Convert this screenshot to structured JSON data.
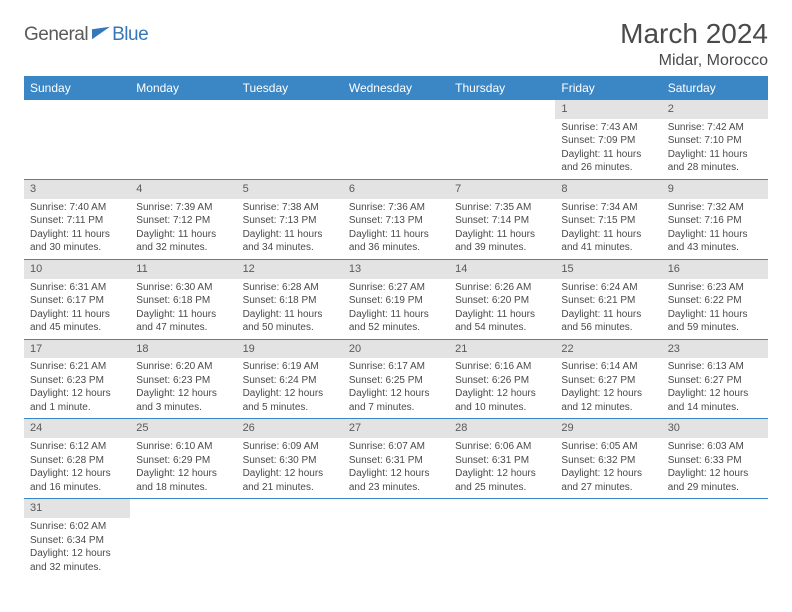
{
  "logo": {
    "part1": "General",
    "part2": "Blue"
  },
  "title": "March 2024",
  "subtitle": "Midar, Morocco",
  "colors": {
    "header_bg": "#3b86c4",
    "header_text": "#ffffff",
    "daynum_bg": "#e3e3e3",
    "border": "#3b86c4",
    "text": "#4a4a4a",
    "logo_blue": "#3577b8",
    "logo_gray": "#5a5a5a",
    "page_bg": "#ffffff"
  },
  "weekdays": [
    "Sunday",
    "Monday",
    "Tuesday",
    "Wednesday",
    "Thursday",
    "Friday",
    "Saturday"
  ],
  "grid": [
    [
      {
        "num": "",
        "lines": []
      },
      {
        "num": "",
        "lines": []
      },
      {
        "num": "",
        "lines": []
      },
      {
        "num": "",
        "lines": []
      },
      {
        "num": "",
        "lines": []
      },
      {
        "num": "1",
        "lines": [
          "Sunrise: 7:43 AM",
          "Sunset: 7:09 PM",
          "Daylight: 11 hours",
          "and 26 minutes."
        ]
      },
      {
        "num": "2",
        "lines": [
          "Sunrise: 7:42 AM",
          "Sunset: 7:10 PM",
          "Daylight: 11 hours",
          "and 28 minutes."
        ]
      }
    ],
    [
      {
        "num": "3",
        "lines": [
          "Sunrise: 7:40 AM",
          "Sunset: 7:11 PM",
          "Daylight: 11 hours",
          "and 30 minutes."
        ]
      },
      {
        "num": "4",
        "lines": [
          "Sunrise: 7:39 AM",
          "Sunset: 7:12 PM",
          "Daylight: 11 hours",
          "and 32 minutes."
        ]
      },
      {
        "num": "5",
        "lines": [
          "Sunrise: 7:38 AM",
          "Sunset: 7:13 PM",
          "Daylight: 11 hours",
          "and 34 minutes."
        ]
      },
      {
        "num": "6",
        "lines": [
          "Sunrise: 7:36 AM",
          "Sunset: 7:13 PM",
          "Daylight: 11 hours",
          "and 36 minutes."
        ]
      },
      {
        "num": "7",
        "lines": [
          "Sunrise: 7:35 AM",
          "Sunset: 7:14 PM",
          "Daylight: 11 hours",
          "and 39 minutes."
        ]
      },
      {
        "num": "8",
        "lines": [
          "Sunrise: 7:34 AM",
          "Sunset: 7:15 PM",
          "Daylight: 11 hours",
          "and 41 minutes."
        ]
      },
      {
        "num": "9",
        "lines": [
          "Sunrise: 7:32 AM",
          "Sunset: 7:16 PM",
          "Daylight: 11 hours",
          "and 43 minutes."
        ]
      }
    ],
    [
      {
        "num": "10",
        "lines": [
          "Sunrise: 6:31 AM",
          "Sunset: 6:17 PM",
          "Daylight: 11 hours",
          "and 45 minutes."
        ]
      },
      {
        "num": "11",
        "lines": [
          "Sunrise: 6:30 AM",
          "Sunset: 6:18 PM",
          "Daylight: 11 hours",
          "and 47 minutes."
        ]
      },
      {
        "num": "12",
        "lines": [
          "Sunrise: 6:28 AM",
          "Sunset: 6:18 PM",
          "Daylight: 11 hours",
          "and 50 minutes."
        ]
      },
      {
        "num": "13",
        "lines": [
          "Sunrise: 6:27 AM",
          "Sunset: 6:19 PM",
          "Daylight: 11 hours",
          "and 52 minutes."
        ]
      },
      {
        "num": "14",
        "lines": [
          "Sunrise: 6:26 AM",
          "Sunset: 6:20 PM",
          "Daylight: 11 hours",
          "and 54 minutes."
        ]
      },
      {
        "num": "15",
        "lines": [
          "Sunrise: 6:24 AM",
          "Sunset: 6:21 PM",
          "Daylight: 11 hours",
          "and 56 minutes."
        ]
      },
      {
        "num": "16",
        "lines": [
          "Sunrise: 6:23 AM",
          "Sunset: 6:22 PM",
          "Daylight: 11 hours",
          "and 59 minutes."
        ]
      }
    ],
    [
      {
        "num": "17",
        "lines": [
          "Sunrise: 6:21 AM",
          "Sunset: 6:23 PM",
          "Daylight: 12 hours",
          "and 1 minute."
        ]
      },
      {
        "num": "18",
        "lines": [
          "Sunrise: 6:20 AM",
          "Sunset: 6:23 PM",
          "Daylight: 12 hours",
          "and 3 minutes."
        ]
      },
      {
        "num": "19",
        "lines": [
          "Sunrise: 6:19 AM",
          "Sunset: 6:24 PM",
          "Daylight: 12 hours",
          "and 5 minutes."
        ]
      },
      {
        "num": "20",
        "lines": [
          "Sunrise: 6:17 AM",
          "Sunset: 6:25 PM",
          "Daylight: 12 hours",
          "and 7 minutes."
        ]
      },
      {
        "num": "21",
        "lines": [
          "Sunrise: 6:16 AM",
          "Sunset: 6:26 PM",
          "Daylight: 12 hours",
          "and 10 minutes."
        ]
      },
      {
        "num": "22",
        "lines": [
          "Sunrise: 6:14 AM",
          "Sunset: 6:27 PM",
          "Daylight: 12 hours",
          "and 12 minutes."
        ]
      },
      {
        "num": "23",
        "lines": [
          "Sunrise: 6:13 AM",
          "Sunset: 6:27 PM",
          "Daylight: 12 hours",
          "and 14 minutes."
        ]
      }
    ],
    [
      {
        "num": "24",
        "lines": [
          "Sunrise: 6:12 AM",
          "Sunset: 6:28 PM",
          "Daylight: 12 hours",
          "and 16 minutes."
        ]
      },
      {
        "num": "25",
        "lines": [
          "Sunrise: 6:10 AM",
          "Sunset: 6:29 PM",
          "Daylight: 12 hours",
          "and 18 minutes."
        ]
      },
      {
        "num": "26",
        "lines": [
          "Sunrise: 6:09 AM",
          "Sunset: 6:30 PM",
          "Daylight: 12 hours",
          "and 21 minutes."
        ]
      },
      {
        "num": "27",
        "lines": [
          "Sunrise: 6:07 AM",
          "Sunset: 6:31 PM",
          "Daylight: 12 hours",
          "and 23 minutes."
        ]
      },
      {
        "num": "28",
        "lines": [
          "Sunrise: 6:06 AM",
          "Sunset: 6:31 PM",
          "Daylight: 12 hours",
          "and 25 minutes."
        ]
      },
      {
        "num": "29",
        "lines": [
          "Sunrise: 6:05 AM",
          "Sunset: 6:32 PM",
          "Daylight: 12 hours",
          "and 27 minutes."
        ]
      },
      {
        "num": "30",
        "lines": [
          "Sunrise: 6:03 AM",
          "Sunset: 6:33 PM",
          "Daylight: 12 hours",
          "and 29 minutes."
        ]
      }
    ],
    [
      {
        "num": "31",
        "lines": [
          "Sunrise: 6:02 AM",
          "Sunset: 6:34 PM",
          "Daylight: 12 hours",
          "and 32 minutes."
        ]
      },
      {
        "num": "",
        "lines": []
      },
      {
        "num": "",
        "lines": []
      },
      {
        "num": "",
        "lines": []
      },
      {
        "num": "",
        "lines": []
      },
      {
        "num": "",
        "lines": []
      },
      {
        "num": "",
        "lines": []
      }
    ]
  ]
}
